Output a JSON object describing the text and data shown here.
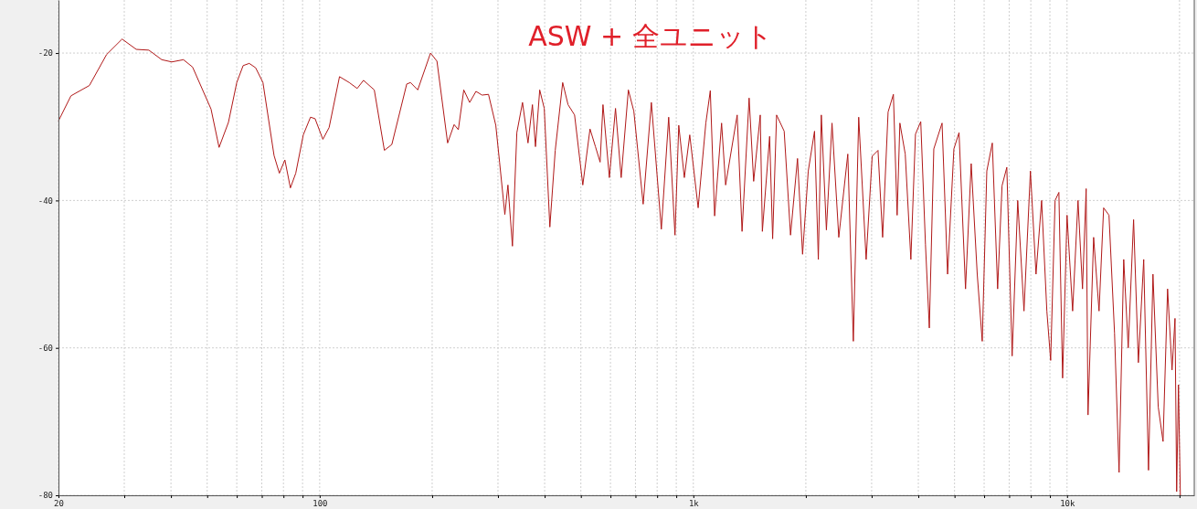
{
  "chart_data": {
    "type": "line",
    "title": "ASW + 全ユニット",
    "log": "x",
    "grid": true,
    "marker": "none",
    "line_style": "solid",
    "xlim": [
      20,
      21900
    ],
    "ylim": [
      -80,
      -12.8
    ],
    "xticks": [
      20,
      {
        "value": 30,
        "label": null
      },
      {
        "value": 40,
        "label": null
      },
      {
        "value": 50,
        "label": null
      },
      {
        "value": 60,
        "label": null
      },
      {
        "value": 70,
        "label": null
      },
      {
        "value": 80,
        "label": null
      },
      {
        "value": 90,
        "label": null
      },
      100,
      {
        "value": 200,
        "label": null
      },
      {
        "value": 300,
        "label": null
      },
      {
        "value": 400,
        "label": null
      },
      {
        "value": 500,
        "label": null
      },
      {
        "value": 600,
        "label": null
      },
      {
        "value": 700,
        "label": null
      },
      {
        "value": 800,
        "label": null
      },
      {
        "value": 900,
        "label": null
      },
      {
        "value": 1000,
        "label": "1k"
      },
      {
        "value": 2000,
        "label": null
      },
      {
        "value": 3000,
        "label": null
      },
      {
        "value": 4000,
        "label": null
      },
      {
        "value": 5000,
        "label": null
      },
      {
        "value": 6000,
        "label": null
      },
      {
        "value": 7000,
        "label": null
      },
      {
        "value": 8000,
        "label": null
      },
      {
        "value": 9000,
        "label": null
      },
      {
        "value": 10000,
        "label": "10k"
      },
      {
        "value": 20000,
        "label": null
      }
    ],
    "yticks": [
      -20,
      -40,
      -60,
      -80
    ],
    "series": [
      {
        "color": "#b01818",
        "x": [
          20,
          21.6,
          24.2,
          26.9,
          29.6,
          32.3,
          34.9,
          37.8,
          40.2,
          43.2,
          45.7,
          51.2,
          53.8,
          57,
          60,
          62.4,
          64.8,
          67.4,
          70.5,
          75.5,
          78,
          80.7,
          83.5,
          86.3,
          90.4,
          94.5,
          97.2,
          102,
          106,
          113,
          120,
          126,
          131,
          140,
          149,
          156,
          171,
          175,
          183,
          198,
          206,
          220,
          229,
          235,
          243,
          252,
          262,
          272,
          283,
          296,
          303,
          313,
          319,
          328,
          337,
          349,
          361,
          371,
          378,
          388,
          399,
          413,
          427,
          447,
          462,
          481,
          506,
          529,
          547,
          563,
          573,
          596,
          619,
          641,
          670,
          693,
          734,
          772,
          821,
          859,
          893,
          914,
          946,
          978,
          1030,
          1080,
          1110,
          1140,
          1190,
          1220,
          1310,
          1350,
          1410,
          1450,
          1510,
          1530,
          1600,
          1630,
          1670,
          1750,
          1820,
          1900,
          1960,
          2030,
          2110,
          2160,
          2200,
          2270,
          2350,
          2450,
          2590,
          2680,
          2770,
          2900,
          3010,
          3120,
          3210,
          3320,
          3430,
          3510,
          3570,
          3690,
          3820,
          3930,
          4060,
          4180,
          4280,
          4400,
          4630,
          4790,
          4980,
          5140,
          5350,
          5540,
          5750,
          5930,
          6100,
          6310,
          6520,
          6700,
          6900,
          7130,
          7380,
          7670,
          7980,
          8260,
          8550,
          8830,
          9040,
          9290,
          9510,
          9730,
          10000,
          10350,
          10700,
          11000,
          11250,
          11380,
          11780,
          12180,
          12530,
          12950,
          13400,
          13780,
          14180,
          14580,
          15070,
          15520,
          16040,
          16520,
          16980,
          17540,
          18070,
          18580,
          19100,
          19450,
          19650,
          19870,
          20100
        ],
        "values": [
          -29.2,
          -25.8,
          -24.4,
          -20.2,
          -18.1,
          -19.5,
          -19.6,
          -20.9,
          -21.2,
          -20.9,
          -21.9,
          -27.6,
          -32.8,
          -29.4,
          -24,
          -21.7,
          -21.4,
          -22,
          -24,
          -33.9,
          -36.3,
          -34.5,
          -38.3,
          -36.3,
          -31.1,
          -28.7,
          -28.9,
          -31.7,
          -30.1,
          -23.2,
          -24,
          -24.8,
          -23.7,
          -25,
          -33.2,
          -32.4,
          -24.2,
          -24,
          -25,
          -20,
          -21.1,
          -32.2,
          -29.7,
          -30.4,
          -25,
          -26.7,
          -25.2,
          -25.7,
          -25.6,
          -29.8,
          -34.8,
          -41.9,
          -37.9,
          -46.2,
          -30.8,
          -26.7,
          -32.2,
          -27,
          -32.7,
          -25,
          -27.5,
          -43.6,
          -33.2,
          -24,
          -27,
          -28.4,
          -37.9,
          -30.3,
          -32.7,
          -34.8,
          -27,
          -36.9,
          -27.5,
          -36.9,
          -25,
          -27.9,
          -40.5,
          -26.7,
          -43.9,
          -28.7,
          -44.7,
          -29.8,
          -36.9,
          -31.1,
          -41,
          -29.5,
          -25.1,
          -42.1,
          -29.5,
          -37.9,
          -28.4,
          -44.2,
          -26.1,
          -37.4,
          -28.4,
          -44.2,
          -31.3,
          -45.2,
          -28.4,
          -30.6,
          -44.7,
          -34.3,
          -47.3,
          -36,
          -30.6,
          -48,
          -28.4,
          -44,
          -29.5,
          -45,
          -33.7,
          -59.1,
          -28.7,
          -48,
          -34,
          -33.2,
          -45,
          -28,
          -25.6,
          -42,
          -29.5,
          -33.7,
          -48,
          -31,
          -29.3,
          -46,
          -57.3,
          -33,
          -29.5,
          -50,
          -33,
          -30.8,
          -52,
          -35,
          -50,
          -59.1,
          -36,
          -32.2,
          -52,
          -38,
          -35.5,
          -61.1,
          -40,
          -55,
          -36,
          -50,
          -40,
          -55,
          -61.7,
          -40,
          -38.9,
          -64.1,
          -42,
          -55,
          -40,
          -52,
          -38.4,
          -69.1,
          -45,
          -55,
          -41,
          -42,
          -58,
          -76.9,
          -48,
          -60,
          -42.6,
          -62,
          -48,
          -76.6,
          -50,
          -68,
          -72.7,
          -52,
          -63,
          -56,
          -79.5,
          -65,
          -80
        ]
      }
    ]
  }
}
